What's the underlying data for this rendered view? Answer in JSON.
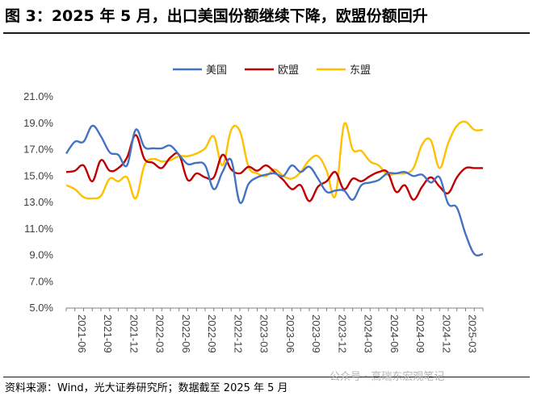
{
  "title": "图 3：2025 年 5 月，出口美国份额继续下降，欧盟份额回升",
  "footer": "资料来源：Wind，光大证券研究所；数据截至 2025 年 5 月",
  "watermark": "公众号 · 高瑞东宏观笔记",
  "chart_data": {
    "type": "line",
    "xlabel": "",
    "ylabel": "",
    "ylim": [
      5.0,
      21.0
    ],
    "yticks": [
      "21.0%",
      "19.0%",
      "17.0%",
      "15.0%",
      "13.0%",
      "11.0%",
      "9.0%",
      "7.0%",
      "5.0%"
    ],
    "xticks": [
      "2021-06",
      "2021-09",
      "2021-12",
      "2022-03",
      "2022-06",
      "2022-09",
      "2022-12",
      "2023-03",
      "2023-06",
      "2023-09",
      "2023-12",
      "2024-03",
      "2024-06",
      "2024-09",
      "2024-12",
      "2025-03"
    ],
    "x": [
      "2021-05",
      "2021-06",
      "2021-07",
      "2021-08",
      "2021-09",
      "2021-10",
      "2021-11",
      "2021-12",
      "2022-01",
      "2022-02",
      "2022-03",
      "2022-04",
      "2022-05",
      "2022-06",
      "2022-07",
      "2022-08",
      "2022-09",
      "2022-10",
      "2022-11",
      "2022-12",
      "2023-01",
      "2023-02",
      "2023-03",
      "2023-04",
      "2023-05",
      "2023-06",
      "2023-07",
      "2023-08",
      "2023-09",
      "2023-10",
      "2023-11",
      "2023-12",
      "2024-01",
      "2024-02",
      "2024-03",
      "2024-04",
      "2024-05",
      "2024-06",
      "2024-07",
      "2024-08",
      "2024-09",
      "2024-10",
      "2024-11",
      "2024-12",
      "2025-01",
      "2025-02",
      "2025-03",
      "2025-04",
      "2025-05"
    ],
    "legend_position": "top-center",
    "grid": false,
    "series": [
      {
        "name": "美国",
        "color": "#4472C4",
        "values": [
          16.7,
          17.6,
          17.6,
          18.8,
          18.0,
          16.8,
          16.6,
          15.8,
          18.5,
          17.2,
          17.1,
          17.1,
          17.3,
          16.6,
          15.9,
          16.0,
          15.8,
          14.0,
          15.3,
          16.2,
          13.0,
          14.4,
          14.9,
          15.1,
          15.2,
          15.0,
          15.8,
          15.3,
          15.7,
          14.8,
          13.8,
          13.9,
          13.9,
          13.2,
          14.3,
          14.5,
          14.7,
          15.2,
          15.2,
          15.3,
          15.0,
          15.1,
          14.5,
          14.9,
          12.9,
          12.6,
          10.6,
          9.1,
          9.1
        ]
      },
      {
        "name": "欧盟",
        "color": "#C00000",
        "values": [
          15.3,
          15.4,
          15.8,
          14.6,
          16.2,
          15.4,
          15.6,
          16.4,
          18.1,
          16.3,
          16.0,
          15.6,
          16.4,
          16.6,
          14.7,
          15.2,
          14.9,
          14.9,
          16.6,
          15.5,
          15.2,
          15.7,
          15.4,
          15.8,
          15.3,
          14.7,
          14.0,
          14.3,
          13.1,
          14.2,
          14.6,
          15.3,
          14.0,
          14.8,
          14.6,
          15.0,
          15.3,
          15.3,
          13.8,
          14.3,
          13.2,
          14.2,
          14.9,
          14.2,
          13.7,
          14.9,
          15.6,
          15.6,
          15.6
        ]
      },
      {
        "name": "东盟",
        "color": "#FFC000",
        "values": [
          14.3,
          14.0,
          13.4,
          13.3,
          13.5,
          14.8,
          14.6,
          14.9,
          13.3,
          15.8,
          16.3,
          16.1,
          16.2,
          16.5,
          16.5,
          16.7,
          17.1,
          18.0,
          15.8,
          18.5,
          18.4,
          15.7,
          15.2,
          15.0,
          15.5,
          15.0,
          14.8,
          15.3,
          16.2,
          16.5,
          15.4,
          13.5,
          18.9,
          17.0,
          16.9,
          16.1,
          15.8,
          15.1,
          15.2,
          15.2,
          15.6,
          17.4,
          17.7,
          15.6,
          17.5,
          18.8,
          19.1,
          18.5,
          18.5
        ]
      }
    ]
  }
}
